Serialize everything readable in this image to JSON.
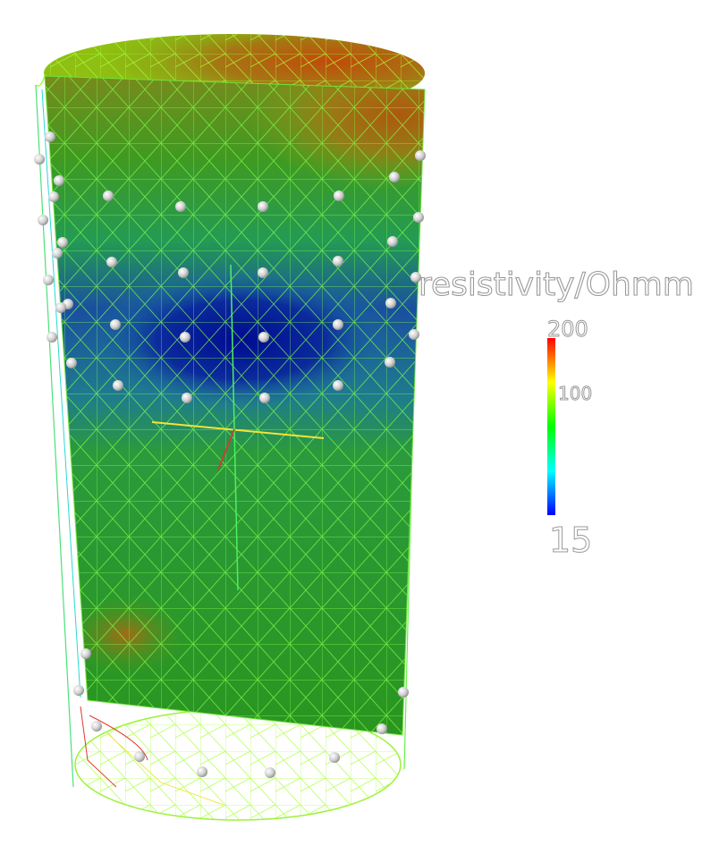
{
  "colorbar": {
    "title": "resistivity/Ohmm",
    "max_label": "200",
    "mid_label": "100",
    "min_label": "15",
    "colormap": [
      "#0000ff",
      "#00ffff",
      "#00ff00",
      "#ffff00",
      "#ff0000"
    ]
  },
  "model_colors": {
    "low": "#00139a",
    "background": "#2a9a1e",
    "high": "#b55a10",
    "electrode": "#d2d2d2"
  }
}
